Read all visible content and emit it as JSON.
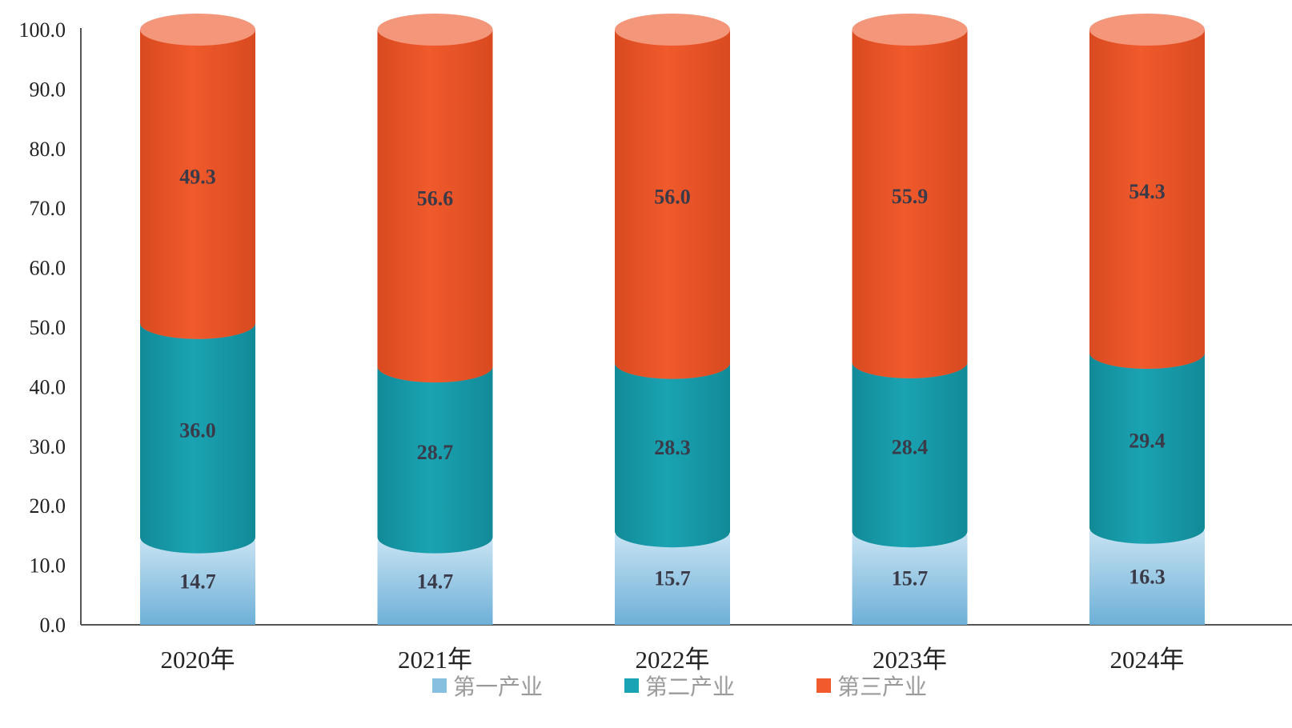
{
  "chart_data": {
    "type": "bar",
    "stacked": true,
    "style": "3d-cylinder",
    "categories": [
      "2020年",
      "2021年",
      "2022年",
      "2023年",
      "2024年"
    ],
    "series": [
      {
        "name": "第一产业",
        "values": [
          14.7,
          14.7,
          15.7,
          15.7,
          16.3
        ],
        "color": "#86bfdf",
        "top_color": "#bfe0f2",
        "shade_color": "#6aaed6"
      },
      {
        "name": "第二产业",
        "values": [
          36.0,
          28.7,
          28.3,
          28.4,
          29.4
        ],
        "color": "#1aa3b2",
        "top_color": "#5cc2cc",
        "shade_color": "#128a98"
      },
      {
        "name": "第三产业",
        "values": [
          49.3,
          56.6,
          56.0,
          55.9,
          54.3
        ],
        "color": "#f05a2c",
        "top_color": "#f4967a",
        "shade_color": "#d94a20"
      }
    ],
    "data_labels": [
      [
        "14.7",
        "14.7",
        "15.7",
        "15.7",
        "16.3"
      ],
      [
        "36.0",
        "28.7",
        "28.3",
        "28.4",
        "29.4"
      ],
      [
        "49.3",
        "56.6",
        "56.0",
        "55.9",
        "54.3"
      ]
    ],
    "y_ticks": [
      "0.0",
      "10.0",
      "20.0",
      "30.0",
      "40.0",
      "50.0",
      "60.0",
      "70.0",
      "80.0",
      "90.0",
      "100.0"
    ],
    "ylim": [
      0,
      100
    ],
    "grid": false,
    "legend_position": "bottom",
    "title": "",
    "xlabel": "",
    "ylabel": ""
  }
}
